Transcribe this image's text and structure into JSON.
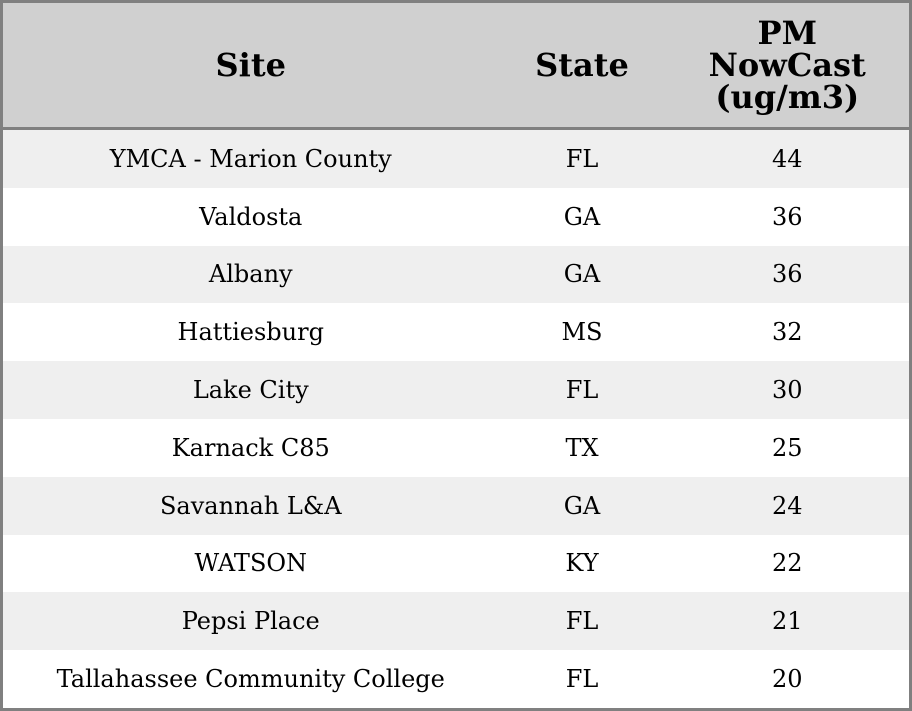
{
  "table": {
    "headers": [
      "Site",
      "State",
      "PM NowCast (ug/m3)"
    ],
    "header_lines": {
      "pm": [
        "PM",
        "NowCast",
        "(ug/m3)"
      ]
    },
    "rows": [
      {
        "site": "YMCA - Marion County",
        "state": "FL",
        "pm": "44"
      },
      {
        "site": "Valdosta",
        "state": "GA",
        "pm": "36"
      },
      {
        "site": "Albany",
        "state": "GA",
        "pm": "36"
      },
      {
        "site": "Hattiesburg",
        "state": "MS",
        "pm": "32"
      },
      {
        "site": "Lake City",
        "state": "FL",
        "pm": "30"
      },
      {
        "site": "Karnack C85",
        "state": "TX",
        "pm": "25"
      },
      {
        "site": "Savannah L&A",
        "state": "GA",
        "pm": "24"
      },
      {
        "site": "WATSON",
        "state": "KY",
        "pm": "22"
      },
      {
        "site": "Pepsi Place",
        "state": "FL",
        "pm": "21"
      },
      {
        "site": "Tallahassee Community College",
        "state": "FL",
        "pm": "20"
      }
    ]
  },
  "colors": {
    "header_bg": "#d0d0d0",
    "stripe_bg": "#efefef",
    "border": "#808080"
  }
}
